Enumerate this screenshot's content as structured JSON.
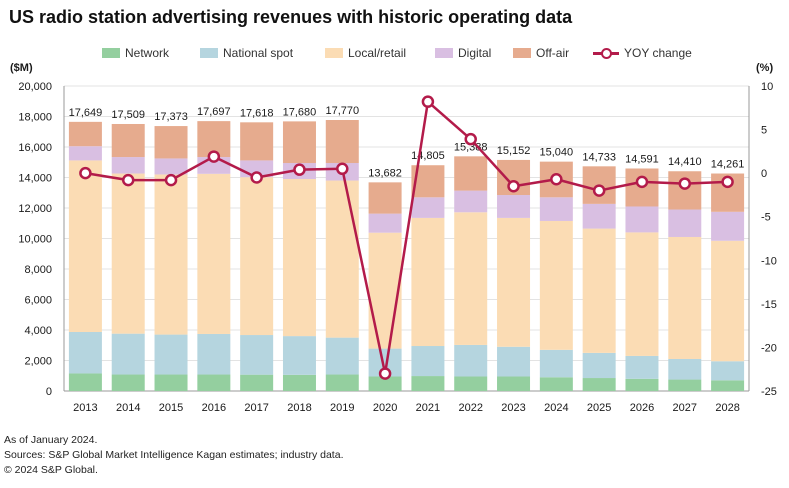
{
  "title": "US radio station advertising revenues with historic operating data",
  "legend": [
    {
      "label": "Network",
      "kind": "swatch",
      "color": "#94cf9f"
    },
    {
      "label": "National spot",
      "kind": "swatch",
      "color": "#b5d5df"
    },
    {
      "label": "Local/retail",
      "kind": "swatch",
      "color": "#fbdcb4"
    },
    {
      "label": "Digital",
      "kind": "swatch",
      "color": "#d9bfe2"
    },
    {
      "label": "Off-air",
      "kind": "swatch",
      "color": "#e6ab8e"
    },
    {
      "label": "YOY change",
      "kind": "line",
      "color": "#b31b4a"
    }
  ],
  "axis_units": {
    "left": "($M)",
    "right": "(%)"
  },
  "chart_data": {
    "type": "bar",
    "stacked": true,
    "categories": [
      "2013",
      "2014",
      "2015",
      "2016",
      "2017",
      "2018",
      "2019",
      "2020",
      "2021",
      "2022",
      "2023",
      "2024",
      "2025",
      "2026",
      "2027",
      "2028"
    ],
    "series": [
      {
        "name": "Network",
        "color": "#94cf9f",
        "values": [
          1150,
          1080,
          1080,
          1080,
          1070,
          1060,
          1080,
          950,
          980,
          950,
          950,
          900,
          850,
          800,
          750,
          700
        ]
      },
      {
        "name": "National spot",
        "color": "#b5d5df",
        "values": [
          2720,
          2680,
          2620,
          2660,
          2600,
          2540,
          2420,
          1830,
          1970,
          2070,
          1950,
          1800,
          1650,
          1500,
          1350,
          1250
        ]
      },
      {
        "name": "Local/retail",
        "color": "#fbdcb4",
        "values": [
          11250,
          10500,
          10500,
          10500,
          10350,
          10300,
          10300,
          7600,
          8400,
          8700,
          8450,
          8450,
          8150,
          8100,
          8000,
          7900
        ]
      },
      {
        "name": "Digital",
        "color": "#d9bfe2",
        "values": [
          930,
          1080,
          1050,
          1100,
          1100,
          1050,
          1150,
          1250,
          1350,
          1420,
          1500,
          1550,
          1620,
          1700,
          1800,
          1900
        ]
      },
      {
        "name": "Off-air",
        "color": "#e6ab8e",
        "values": [
          1599,
          2169,
          2123,
          2357,
          2498,
          2730,
          2820,
          2052,
          2105,
          2248,
          2302,
          2340,
          2463,
          2491,
          2510,
          2511
        ]
      }
    ],
    "totals": [
      17649,
      17509,
      17373,
      17697,
      17618,
      17680,
      17770,
      13682,
      14805,
      15388,
      15152,
      15040,
      14733,
      14591,
      14410,
      14261
    ],
    "total_labels": [
      "17,649",
      "17,509",
      "17,373",
      "17,697",
      "17,618",
      "17,680",
      "17,770",
      "13,682",
      "14,805",
      "15,388",
      "15,152",
      "15,040",
      "14,733",
      "14,591",
      "14,410",
      "14,261"
    ],
    "line_series": {
      "name": "YOY change",
      "axis": "right",
      "color": "#b31b4a",
      "values": [
        0.0,
        -0.8,
        -0.8,
        1.9,
        -0.5,
        0.4,
        0.5,
        -23.0,
        8.2,
        3.9,
        -1.5,
        -0.7,
        -2.0,
        -1.0,
        -1.2,
        -1.0
      ]
    },
    "left_axis": {
      "min": 0,
      "max": 20000,
      "step": 2000,
      "tick_labels": [
        "0",
        "2,000",
        "4,000",
        "6,000",
        "8,000",
        "10,000",
        "12,000",
        "14,000",
        "16,000",
        "18,000",
        "20,000"
      ]
    },
    "right_axis": {
      "min": -25,
      "max": 10,
      "step": 5,
      "tick_labels": [
        "-25",
        "-20",
        "-15",
        "-10",
        "-5",
        "0",
        "5",
        "10"
      ]
    },
    "grid": true,
    "legend_position": "top"
  },
  "footnotes": [
    "As of January 2024.",
    "Sources: S&P Global Market Intelligence Kagan estimates; industry data.",
    "© 2024 S&P Global."
  ]
}
